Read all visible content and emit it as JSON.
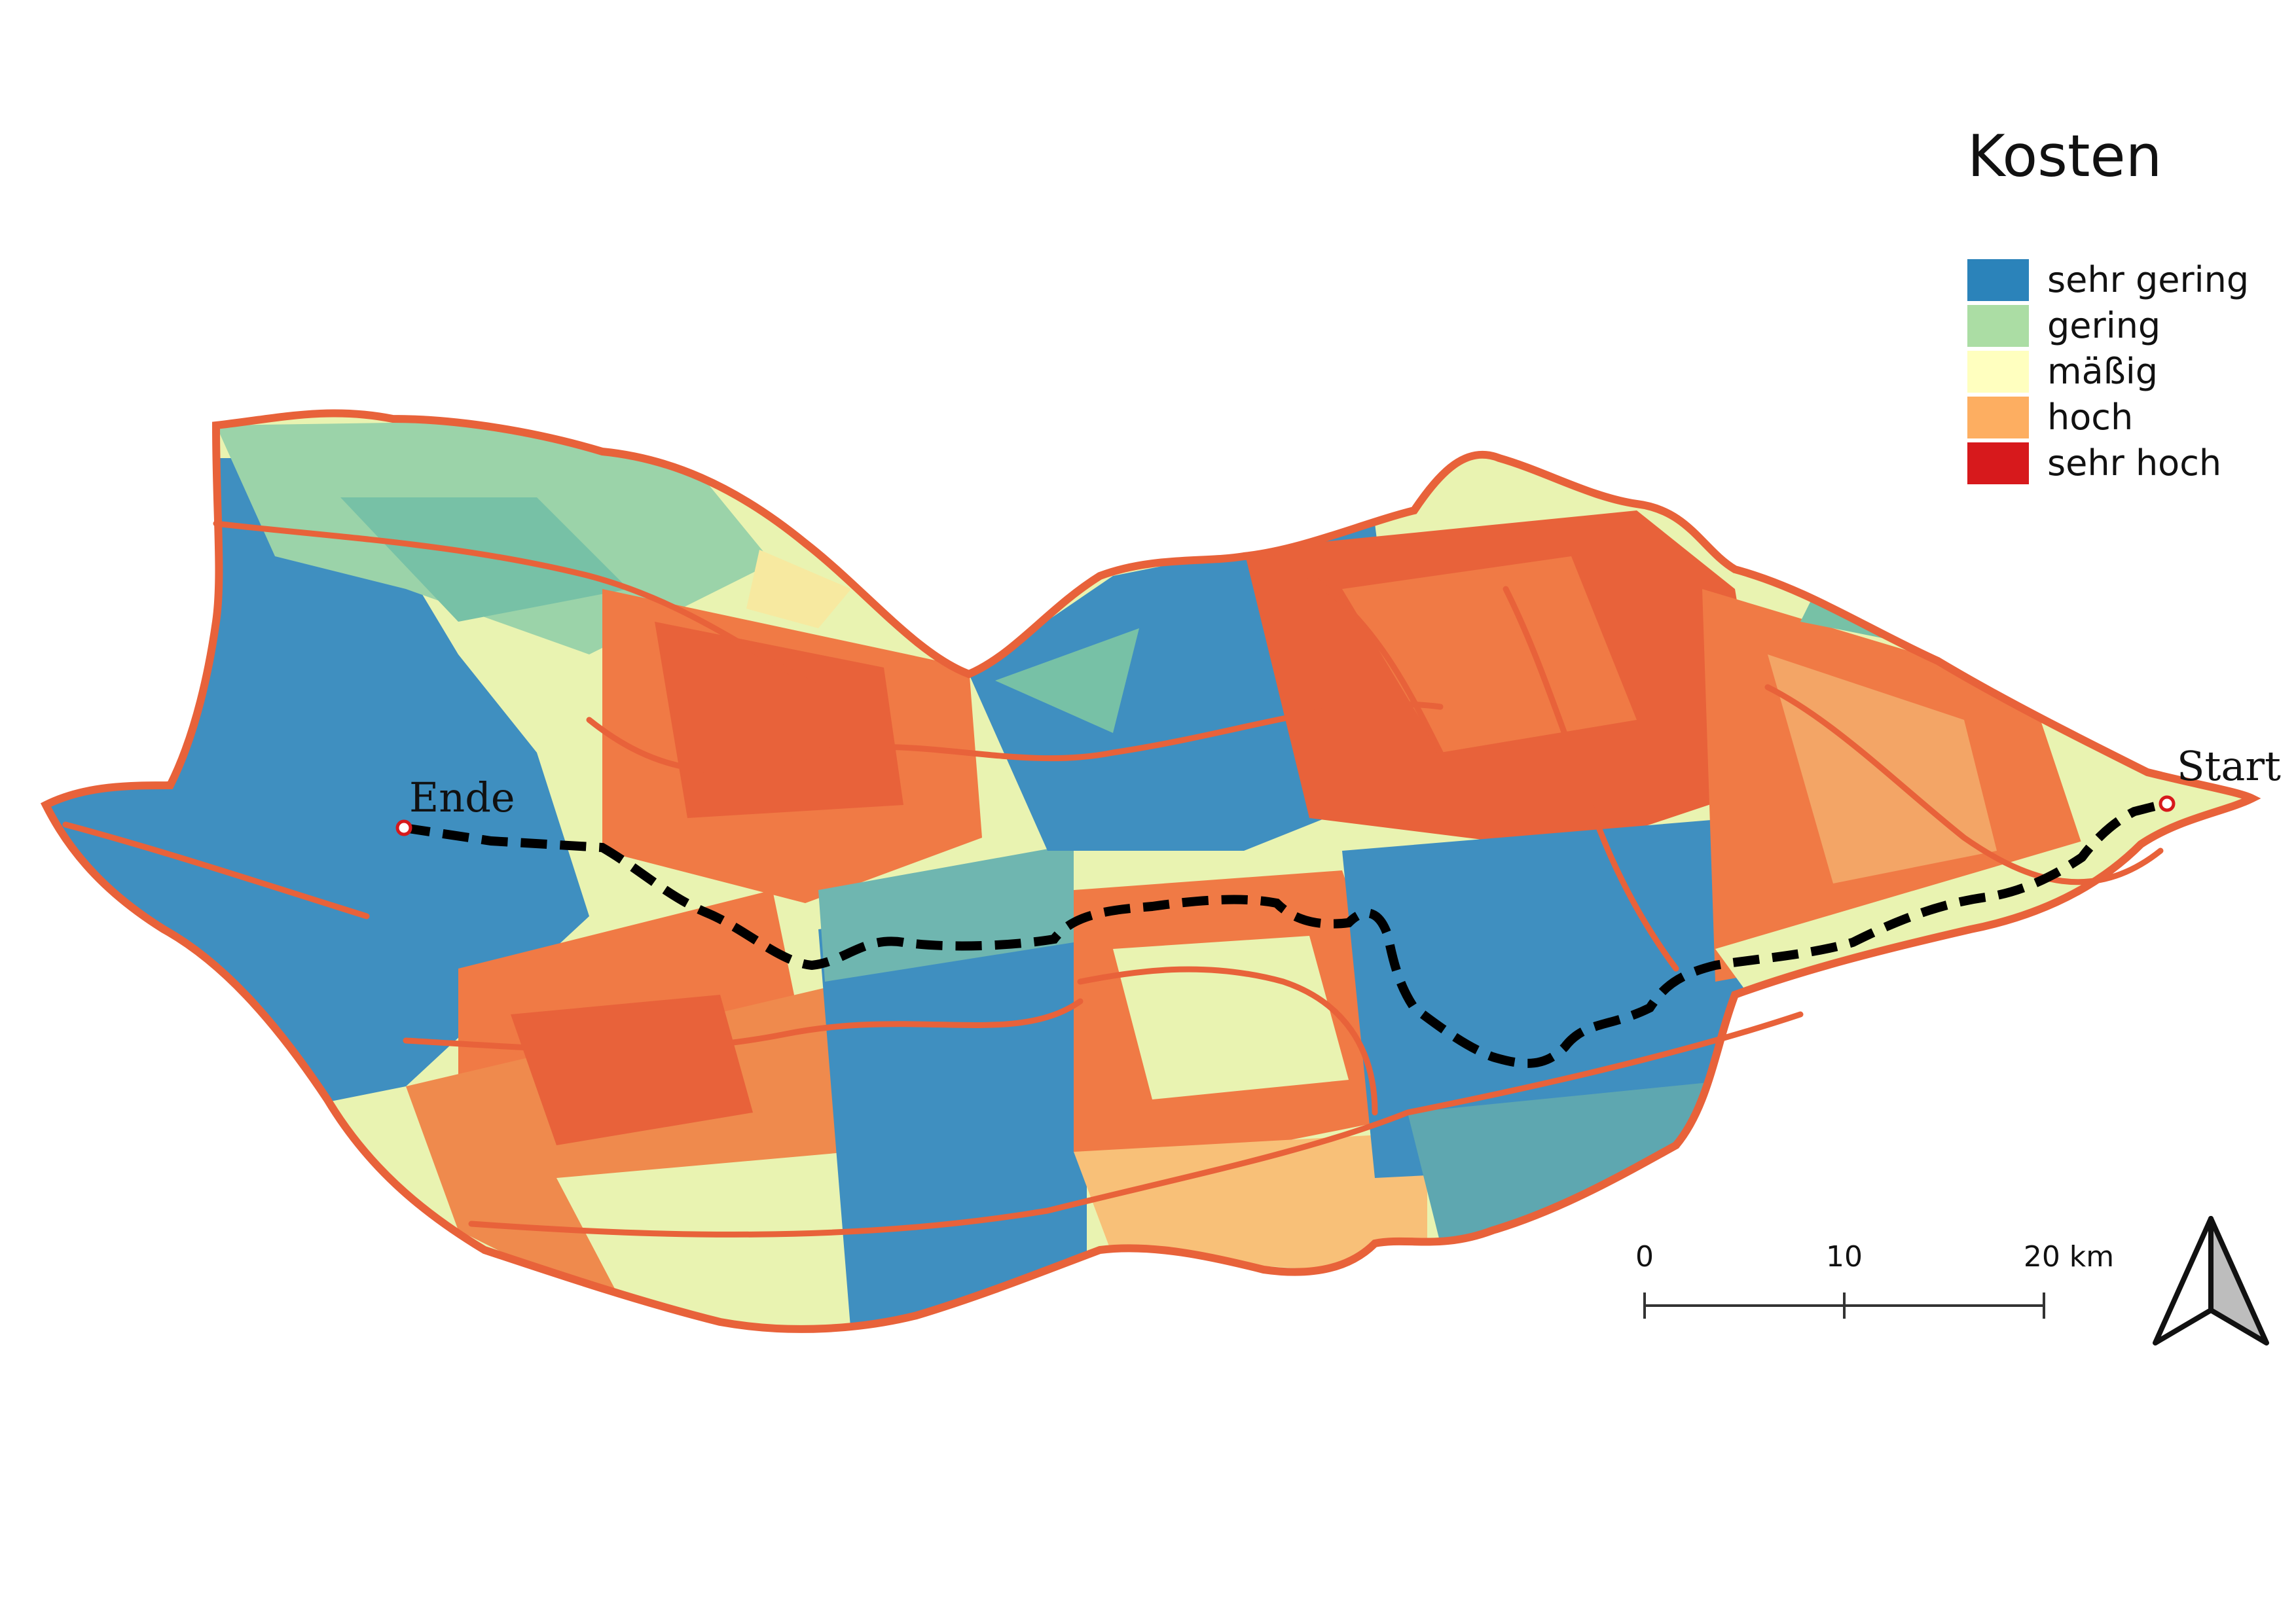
{
  "legend": {
    "title": "Kosten",
    "items": [
      {
        "label": "sehr gering",
        "color": "#2b83ba"
      },
      {
        "label": "gering",
        "color": "#abdda4"
      },
      {
        "label": "mäßig",
        "color": "#ffffbf"
      },
      {
        "label": "hoch",
        "color": "#fdae61"
      },
      {
        "label": "sehr hoch",
        "color": "#d7191c"
      }
    ]
  },
  "route": {
    "start_label": "Start",
    "end_label": "Ende",
    "line_color": "#000000"
  },
  "scalebar": {
    "ticks": [
      "0",
      "10",
      "20 km"
    ]
  },
  "north_arrow": {
    "icon": "north-arrow-icon"
  },
  "colors": {
    "boundary": "#e8623a",
    "raster_high": "#f07a45",
    "raster_mid": "#e9f3b1",
    "raster_low": "#3f8fc0",
    "raster_lowmid": "#77c1a6",
    "raster_ochre": "#f8c078"
  }
}
